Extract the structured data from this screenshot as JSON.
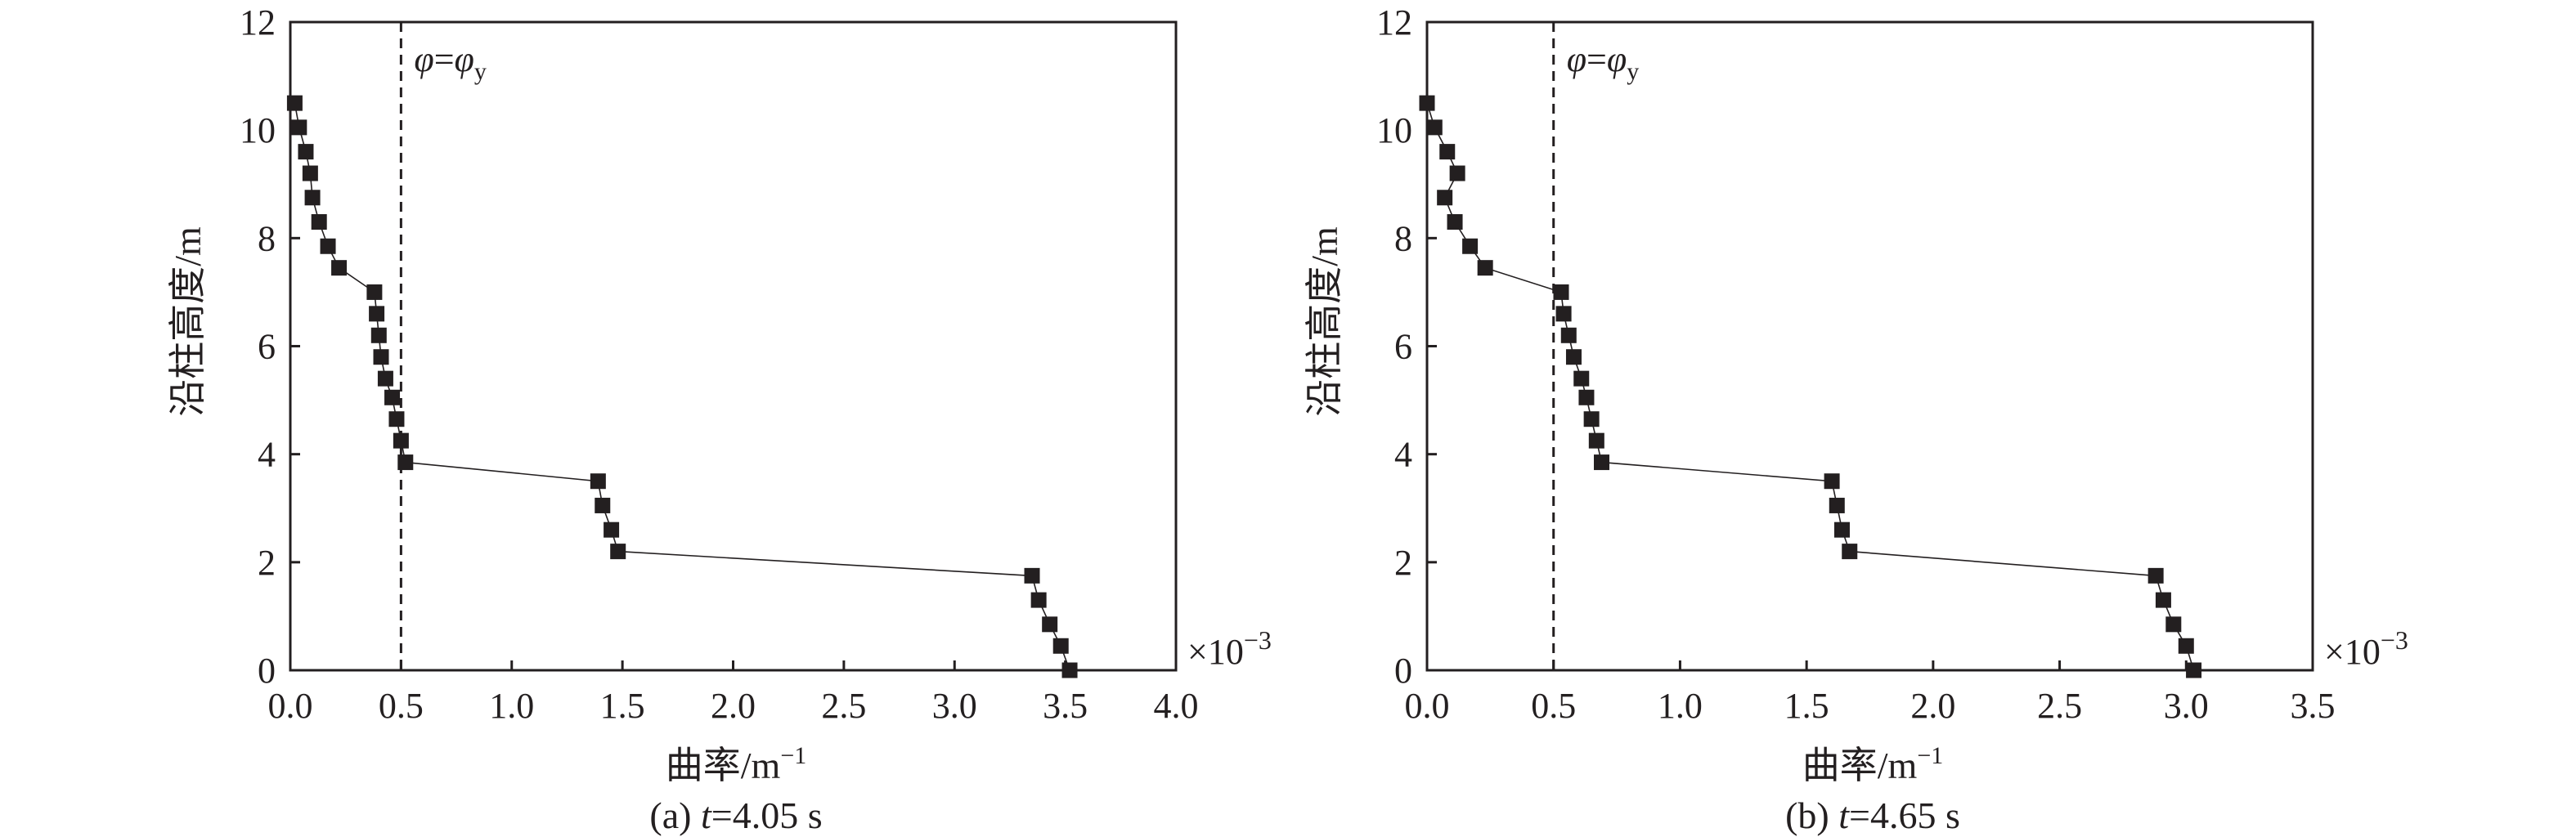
{
  "chart_data": [
    {
      "type": "scatter",
      "caption_prefix": "(a) ",
      "caption_var": "t",
      "caption_rest": "=4.05 s",
      "xlabel": "曲率/m",
      "xlabel_sup": "−1",
      "ylabel": "沿柱高度/m",
      "x_multiplier": "×10",
      "x_multiplier_sup": "−3",
      "xlim": [
        0,
        4.0
      ],
      "ylim": [
        0,
        12
      ],
      "xticks": [
        "0.0",
        "0.5",
        "1.0",
        "1.5",
        "2.0",
        "2.5",
        "3.0",
        "3.5",
        "4.0"
      ],
      "yticks": [
        "0",
        "2",
        "4",
        "6",
        "8",
        "10",
        "12"
      ],
      "reference_line": {
        "x": 0.5,
        "style": "dashed",
        "label_left": "φ",
        "label_eq": "=",
        "label_right": "φ",
        "label_sub": "y"
      },
      "marker": "square",
      "grid": false,
      "points": [
        {
          "x": 0.02,
          "y": 10.5
        },
        {
          "x": 0.04,
          "y": 10.05
        },
        {
          "x": 0.07,
          "y": 9.6
        },
        {
          "x": 0.09,
          "y": 9.2
        },
        {
          "x": 0.1,
          "y": 8.75
        },
        {
          "x": 0.13,
          "y": 8.3
        },
        {
          "x": 0.17,
          "y": 7.85
        },
        {
          "x": 0.22,
          "y": 7.45
        },
        {
          "x": 0.38,
          "y": 7.0
        },
        {
          "x": 0.39,
          "y": 6.6
        },
        {
          "x": 0.4,
          "y": 6.2
        },
        {
          "x": 0.41,
          "y": 5.8
        },
        {
          "x": 0.43,
          "y": 5.4
        },
        {
          "x": 0.46,
          "y": 5.05
        },
        {
          "x": 0.48,
          "y": 4.65
        },
        {
          "x": 0.5,
          "y": 4.25
        },
        {
          "x": 0.52,
          "y": 3.85
        },
        {
          "x": 1.39,
          "y": 3.5
        },
        {
          "x": 1.41,
          "y": 3.05
        },
        {
          "x": 1.45,
          "y": 2.6
        },
        {
          "x": 1.48,
          "y": 2.2
        },
        {
          "x": 3.35,
          "y": 1.75
        },
        {
          "x": 3.38,
          "y": 1.3
        },
        {
          "x": 3.43,
          "y": 0.85
        },
        {
          "x": 3.48,
          "y": 0.45
        },
        {
          "x": 3.52,
          "y": 0.0
        }
      ]
    },
    {
      "type": "scatter",
      "caption_prefix": "(b) ",
      "caption_var": "t",
      "caption_rest": "=4.65 s",
      "xlabel": "曲率/m",
      "xlabel_sup": "−1",
      "ylabel": "沿柱高度/m",
      "x_multiplier": "×10",
      "x_multiplier_sup": "−3",
      "xlim": [
        0,
        3.5
      ],
      "ylim": [
        0,
        12
      ],
      "xticks": [
        "0.0",
        "0.5",
        "1.0",
        "1.5",
        "2.0",
        "2.5",
        "3.0",
        "3.5"
      ],
      "yticks": [
        "0",
        "2",
        "4",
        "6",
        "8",
        "10",
        "12"
      ],
      "reference_line": {
        "x": 0.5,
        "style": "dashed",
        "label_left": "φ",
        "label_eq": "=",
        "label_right": "φ",
        "label_sub": "y"
      },
      "marker": "square",
      "grid": false,
      "points": [
        {
          "x": 0.0,
          "y": 10.5
        },
        {
          "x": 0.03,
          "y": 10.05
        },
        {
          "x": 0.08,
          "y": 9.6
        },
        {
          "x": 0.12,
          "y": 9.2
        },
        {
          "x": 0.07,
          "y": 8.75
        },
        {
          "x": 0.11,
          "y": 8.3
        },
        {
          "x": 0.17,
          "y": 7.85
        },
        {
          "x": 0.23,
          "y": 7.45
        },
        {
          "x": 0.53,
          "y": 7.0
        },
        {
          "x": 0.54,
          "y": 6.6
        },
        {
          "x": 0.56,
          "y": 6.2
        },
        {
          "x": 0.58,
          "y": 5.8
        },
        {
          "x": 0.61,
          "y": 5.4
        },
        {
          "x": 0.63,
          "y": 5.05
        },
        {
          "x": 0.65,
          "y": 4.65
        },
        {
          "x": 0.67,
          "y": 4.25
        },
        {
          "x": 0.69,
          "y": 3.85
        },
        {
          "x": 1.6,
          "y": 3.5
        },
        {
          "x": 1.62,
          "y": 3.05
        },
        {
          "x": 1.64,
          "y": 2.6
        },
        {
          "x": 1.67,
          "y": 2.2
        },
        {
          "x": 2.88,
          "y": 1.75
        },
        {
          "x": 2.91,
          "y": 1.3
        },
        {
          "x": 2.95,
          "y": 0.85
        },
        {
          "x": 3.0,
          "y": 0.45
        },
        {
          "x": 3.03,
          "y": 0.0
        }
      ]
    }
  ]
}
